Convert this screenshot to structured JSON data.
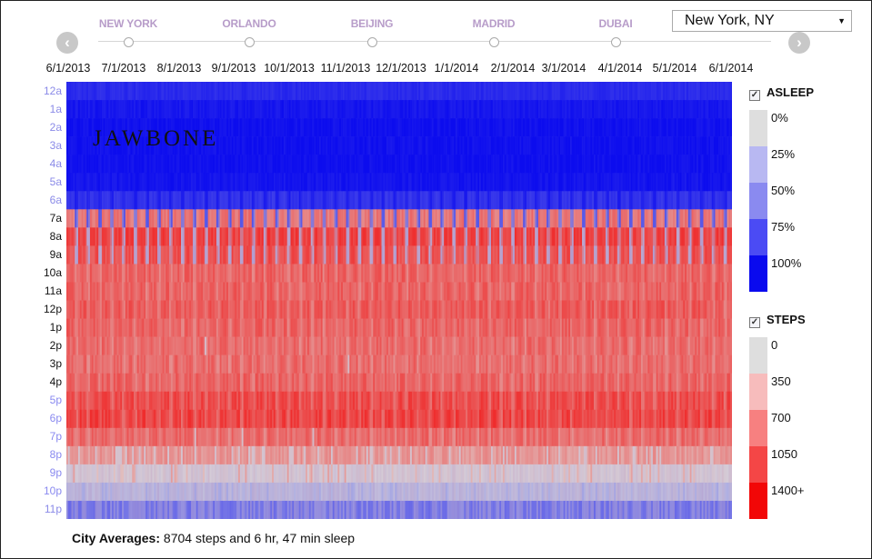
{
  "cities": [
    {
      "name": "NEW YORK",
      "active": true
    },
    {
      "name": "ORLANDO",
      "active": false
    },
    {
      "name": "BEIJING",
      "active": false
    },
    {
      "name": "MADRID",
      "active": false
    },
    {
      "name": "DUBAI",
      "active": false
    }
  ],
  "city_select": {
    "value": "New York, NY"
  },
  "nav": {
    "prev_glyph": "‹",
    "next_glyph": "›"
  },
  "logo_text": "JAWBONE",
  "footer": {
    "label": "City Averages:",
    "text": "8704 steps and 6 hr, 47 min sleep"
  },
  "colors": {
    "asleep": [
      "#dedede",
      "#b8b8f2",
      "#8a8af0",
      "#4b4bf4",
      "#0a0aee"
    ],
    "steps": [
      "#dedede",
      "#f7bcbc",
      "#f78080",
      "#f44646",
      "#f20707"
    ]
  },
  "chart_data": {
    "type": "heatmap",
    "x_tick_labels": [
      "6/1/2013",
      "7/1/2013",
      "8/1/2013",
      "9/1/2013",
      "10/1/2013",
      "11/1/2013",
      "12/1/2013",
      "1/1/2014",
      "2/1/2014",
      "3/1/2014",
      "4/1/2014",
      "5/1/2014",
      "6/1/2014"
    ],
    "y_tick_labels": [
      "12a",
      "1a",
      "2a",
      "3a",
      "4a",
      "5a",
      "6a",
      "7a",
      "8a",
      "9a",
      "10a",
      "11a",
      "12p",
      "1p",
      "2p",
      "3p",
      "4p",
      "5p",
      "6p",
      "7p",
      "8p",
      "9p",
      "10p",
      "11p"
    ],
    "x_range": [
      "6/1/2013",
      "6/30/2014"
    ],
    "legends": [
      {
        "title": "ASLEEP",
        "checked": true,
        "labels": [
          "0%",
          "25%",
          "50%",
          "75%",
          "100%"
        ]
      },
      {
        "title": "STEPS",
        "checked": true,
        "labels": [
          "0",
          "350",
          "700",
          "1050",
          "1400+"
        ]
      }
    ],
    "hourly_profile": [
      {
        "hour": "12a",
        "asleep_pct": 85,
        "steps": 0
      },
      {
        "hour": "1a",
        "asleep_pct": 95,
        "steps": 0
      },
      {
        "hour": "2a",
        "asleep_pct": 98,
        "steps": 0
      },
      {
        "hour": "3a",
        "asleep_pct": 98,
        "steps": 0
      },
      {
        "hour": "4a",
        "asleep_pct": 98,
        "steps": 0
      },
      {
        "hour": "5a",
        "asleep_pct": 96,
        "steps": 0
      },
      {
        "hour": "6a",
        "asleep_pct": 80,
        "steps": 100
      },
      {
        "hour": "7a",
        "asleep_pct": 0,
        "steps": 650
      },
      {
        "hour": "8a",
        "asleep_pct": 0,
        "steps": 1000
      },
      {
        "hour": "9a",
        "asleep_pct": 0,
        "steps": 900
      },
      {
        "hour": "10a",
        "asleep_pct": 0,
        "steps": 800
      },
      {
        "hour": "11a",
        "asleep_pct": 0,
        "steps": 800
      },
      {
        "hour": "12p",
        "asleep_pct": 0,
        "steps": 850
      },
      {
        "hour": "1p",
        "asleep_pct": 0,
        "steps": 800
      },
      {
        "hour": "2p",
        "asleep_pct": 0,
        "steps": 750
      },
      {
        "hour": "3p",
        "asleep_pct": 0,
        "steps": 750
      },
      {
        "hour": "4p",
        "asleep_pct": 0,
        "steps": 800
      },
      {
        "hour": "5p",
        "asleep_pct": 0,
        "steps": 950
      },
      {
        "hour": "6p",
        "asleep_pct": 0,
        "steps": 1000
      },
      {
        "hour": "7p",
        "asleep_pct": 0,
        "steps": 750
      },
      {
        "hour": "8p",
        "asleep_pct": 0,
        "steps": 450
      },
      {
        "hour": "9p",
        "asleep_pct": 5,
        "steps": 300
      },
      {
        "hour": "10p",
        "asleep_pct": 20,
        "steps": 150
      },
      {
        "hour": "11p",
        "asleep_pct": 50,
        "steps": 80
      }
    ]
  }
}
